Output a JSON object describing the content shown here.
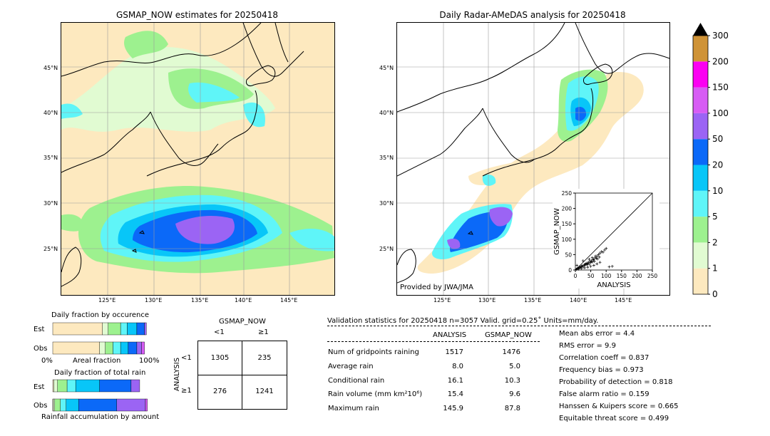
{
  "left_map": {
    "title": "GSMAP_NOW estimates for 20250418",
    "lat_labels": [
      "45°N",
      "40°N",
      "35°N",
      "30°N",
      "25°N"
    ],
    "lon_labels": [
      "125°E",
      "130°E",
      "135°E",
      "140°E",
      "145°E"
    ]
  },
  "right_map": {
    "title": "Daily Radar-AMeDAS analysis for 20250418",
    "lat_labels": [
      "45°N",
      "40°N",
      "35°N",
      "30°N",
      "25°N"
    ],
    "lon_labels": [
      "125°E",
      "130°E",
      "135°E",
      "140°E",
      "145°E"
    ],
    "credit": "Provided by JWA/JMA"
  },
  "colorbar": {
    "labels": [
      "0",
      "1",
      "2",
      "5",
      "10",
      "20",
      "50",
      "100",
      "150",
      "200",
      "300"
    ],
    "colors": [
      "#fde9bf",
      "#e1fbd2",
      "#9df18f",
      "#5ff5f8",
      "#08c6f8",
      "#0b69f8",
      "#9b64f4",
      "#d75cf4",
      "#fb00f2",
      "#cf9337"
    ],
    "overflow_color": "#000000"
  },
  "occurrence": {
    "title": "Daily fraction by occurence",
    "rows": [
      "Est",
      "Obs"
    ],
    "axis_left": "0%",
    "axis_mid": "Areal fraction",
    "axis_right": "100%"
  },
  "total_rain": {
    "title": "Daily fraction of total rain",
    "rows": [
      "Est",
      "Obs"
    ],
    "axis_label": "Rainfall accumulation by amount"
  },
  "contingency": {
    "top_label": "GSMAP_NOW",
    "col_labels": [
      "<1",
      "≥1"
    ],
    "side_label": "ANALYSIS",
    "row_labels": [
      "<1",
      "≥1"
    ],
    "cells": [
      [
        "1305",
        "235"
      ],
      [
        "276",
        "1241"
      ]
    ]
  },
  "validation": {
    "header": "Validation statistics for 20250418  n=3057 Valid. grid=0.25˚ Units=mm/day.",
    "col_analysis": "ANALYSIS",
    "col_gsmap": "GSMAP_NOW",
    "rows": [
      {
        "label": "Num of gridpoints raining",
        "analysis": "1517",
        "gsmap": "1476"
      },
      {
        "label": "Average rain",
        "analysis": "8.0",
        "gsmap": "5.0"
      },
      {
        "label": "Conditional rain",
        "analysis": "16.1",
        "gsmap": "10.3"
      },
      {
        "label": "Rain volume (mm km²10⁶)",
        "analysis": "15.4",
        "gsmap": "9.6"
      },
      {
        "label": "Maximum rain",
        "analysis": "145.9",
        "gsmap": "87.8"
      }
    ],
    "scores": [
      "Mean abs error =    4.4",
      "RMS error =    9.9",
      "Correlation coeff =  0.837",
      "Frequency bias =  0.973",
      "Probability of detection =  0.818",
      "False alarm ratio =  0.159",
      "Hanssen & Kuipers score =  0.665",
      "Equitable threat score =  0.499"
    ]
  },
  "chart_data": [
    {
      "type": "scatter",
      "title": "",
      "xlabel": "ANALYSIS",
      "ylabel": "GSMAP_NOW",
      "xlim": [
        0,
        250
      ],
      "ylim": [
        0,
        250
      ],
      "ticks": [
        "0",
        "50",
        "100",
        "150",
        "200",
        "250"
      ],
      "x": [
        3,
        5,
        8,
        10,
        12,
        15,
        18,
        20,
        22,
        25,
        28,
        30,
        32,
        35,
        38,
        40,
        42,
        45,
        48,
        50,
        52,
        55,
        58,
        60,
        62,
        65,
        68,
        70,
        72,
        75,
        78,
        80,
        85,
        90,
        95,
        100,
        110,
        120,
        10,
        20,
        30,
        40,
        50,
        60,
        70,
        80,
        25,
        35,
        45,
        55,
        65,
        15,
        5
      ],
      "y": [
        2,
        4,
        6,
        5,
        8,
        10,
        9,
        12,
        14,
        11,
        15,
        18,
        16,
        20,
        17,
        22,
        25,
        19,
        28,
        24,
        30,
        26,
        33,
        35,
        28,
        40,
        38,
        45,
        36,
        50,
        42,
        55,
        60,
        58,
        65,
        70,
        10,
        12,
        3,
        5,
        7,
        9,
        12,
        15,
        20,
        25,
        30,
        22,
        35,
        40,
        45,
        8,
        15
      ]
    },
    {
      "type": "bar",
      "title": "Daily fraction by occurence",
      "categories": [
        "Est",
        "Obs"
      ],
      "xlabel": "Areal fraction",
      "series": [
        {
          "values": [
            0.52,
            0.49
          ]
        },
        {
          "values": [
            0.06,
            0.06
          ]
        },
        {
          "values": [
            0.13,
            0.08
          ]
        },
        {
          "values": [
            0.07,
            0.08
          ]
        },
        {
          "values": [
            0.1,
            0.08
          ]
        },
        {
          "values": [
            0.08,
            0.09
          ]
        },
        {
          "values": [
            0.02,
            0.05
          ]
        },
        {
          "values": [
            0.0,
            0.03
          ]
        }
      ]
    },
    {
      "type": "bar",
      "title": "Daily fraction of total rain",
      "categories": [
        "Est",
        "Obs"
      ],
      "xlabel": "Rainfall accumulation by amount",
      "series": [
        {
          "values": [
            0.01,
            0.005
          ]
        },
        {
          "values": [
            0.04,
            0.015
          ]
        },
        {
          "values": [
            0.1,
            0.06
          ]
        },
        {
          "values": [
            0.09,
            0.06
          ]
        },
        {
          "values": [
            0.25,
            0.13
          ]
        },
        {
          "values": [
            0.33,
            0.4
          ]
        },
        {
          "values": [
            0.09,
            0.3
          ]
        },
        {
          "values": [
            0.0,
            0.02
          ]
        }
      ]
    }
  ]
}
